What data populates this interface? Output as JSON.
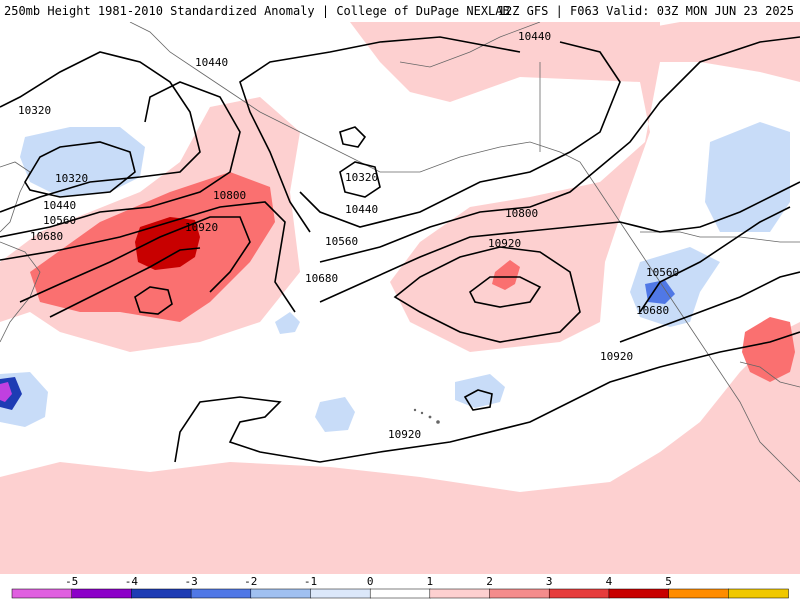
{
  "header": {
    "left_title": "250mb Height 1981-2010 Standardized Anomaly | College of DuPage NEXLAB",
    "right_title": "12Z GFS | F063 Valid: 03Z MON JUN 23 2025"
  },
  "map": {
    "contour_labels": {
      "c10440_nw": "10440",
      "c10320_w": "10320",
      "c10320_low": "10320",
      "c10440_w": "10440",
      "c10560_w": "10560",
      "c10680_w": "10680",
      "c10800_w": "10800",
      "c10920_w": "10920",
      "c10320_c": "10320",
      "c10440_c": "10440",
      "c10560_c": "10560",
      "c10680_c": "10680",
      "c10800_c": "10800",
      "c10920_c": "10920",
      "c10440_ne": "10440",
      "c10560_e": "10560",
      "c10680_e": "10680",
      "c10920_e": "10920",
      "c10920_s": "10920"
    },
    "anomaly_colors": {
      "pos1": "#fdd0d0",
      "pos2": "#fa7070",
      "pos3": "#c80000",
      "neg1": "#c8dcf8",
      "neg2": "#5078e6",
      "neg5": "#c040e0"
    }
  },
  "colorbar": {
    "ticks": [
      "-5",
      "-4",
      "-3",
      "-2",
      "-1",
      "0",
      "1",
      "2",
      "3",
      "4",
      "5"
    ],
    "colors": [
      "#e060e0",
      "#8c00c8",
      "#1e3cb4",
      "#5078e6",
      "#a0c0f0",
      "#dce8fa",
      "#ffffff",
      "#fdd0d0",
      "#f48c8c",
      "#e63c3c",
      "#c80000",
      "#ff8c00",
      "#f0c800"
    ]
  }
}
